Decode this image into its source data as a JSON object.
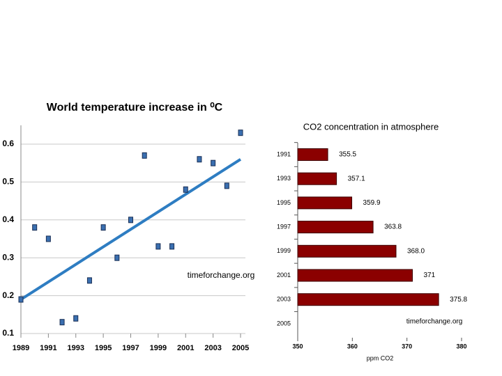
{
  "chart_data": [
    {
      "type": "scatter",
      "title": "World temperature increase in ⁰C",
      "annotation": "timeforchange.org",
      "x": [
        1989,
        1990,
        1991,
        1992,
        1993,
        1994,
        1995,
        1996,
        1997,
        1998,
        1999,
        2000,
        2001,
        2002,
        2003,
        2004,
        2005
      ],
      "values": [
        0.19,
        0.38,
        0.35,
        0.13,
        0.14,
        0.24,
        0.38,
        0.3,
        0.4,
        0.57,
        0.33,
        0.33,
        0.48,
        0.56,
        0.55,
        0.49,
        0.63
      ],
      "color": "#3a6fb0",
      "trend": {
        "x": [
          1989,
          2005
        ],
        "values": [
          0.19,
          0.56
        ],
        "color": "#2e7dc2"
      },
      "xlim": [
        1989,
        2005
      ],
      "xticks": [
        1989,
        1991,
        1993,
        1995,
        1997,
        1999,
        2001,
        2003,
        2005
      ],
      "ylim": [
        0.1,
        0.65
      ],
      "yticks": [
        0.1,
        0.2,
        0.3,
        0.4,
        0.5,
        0.6
      ],
      "grid": true
    },
    {
      "type": "hbar",
      "title": "CO2 concentration in atmosphere",
      "annotation": "timeforchange.org",
      "x_label": "ppm CO2",
      "categories": [
        "1991",
        "1993",
        "1995",
        "1997",
        "1999",
        "2001",
        "2003",
        "2005"
      ],
      "values": [
        355.5,
        357.1,
        359.9,
        363.8,
        368.0,
        371,
        375.8,
        null
      ],
      "value_labels": [
        "355.5",
        "357.1",
        "359.9",
        "363.8",
        "368.0",
        "371",
        "375.8",
        null
      ],
      "color": "#8b0000",
      "xlim": [
        350,
        380
      ],
      "xticks": [
        350,
        360,
        370,
        380
      ]
    }
  ]
}
